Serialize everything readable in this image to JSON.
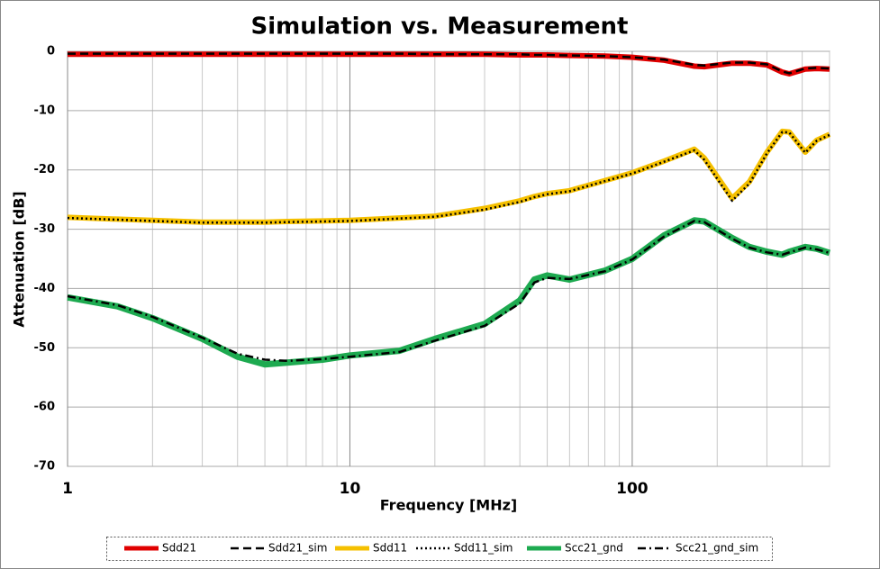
{
  "chart_data": {
    "type": "line",
    "title": "Simulation vs. Measurement",
    "x_label": "Frequency [MHz]",
    "y_label": "Attenuation  [dB]",
    "x_log_scale": true,
    "grid": true,
    "xlim": [
      1,
      500
    ],
    "xticks": [
      1,
      10,
      100
    ],
    "xminorticks": [
      2,
      3,
      4,
      5,
      6,
      7,
      8,
      9,
      20,
      30,
      40,
      50,
      60,
      70,
      80,
      90,
      200,
      300,
      400,
      500
    ],
    "ylim": [
      -70,
      0
    ],
    "yticks": [
      0,
      -10,
      -20,
      -30,
      -40,
      -50,
      -60,
      -70
    ],
    "legend": "bottom",
    "x": [
      1,
      1.5,
      2,
      3,
      4,
      5,
      6,
      8,
      10,
      15,
      20,
      30,
      40,
      45,
      50,
      60,
      80,
      100,
      130,
      166,
      180,
      226,
      260,
      300,
      340,
      360,
      410,
      450,
      500
    ],
    "series": [
      {
        "name": "Sdd21",
        "color": "#e00000",
        "line_style": "solid",
        "width": 6,
        "values": [
          -0.5,
          -0.5,
          -0.5,
          -0.5,
          -0.5,
          -0.5,
          -0.5,
          -0.5,
          -0.5,
          -0.5,
          -0.5,
          -0.5,
          -0.6,
          -0.6,
          -0.6,
          -0.7,
          -0.8,
          -1,
          -1.5,
          -2.5,
          -2.6,
          -2,
          -2,
          -2.3,
          -3.5,
          -3.8,
          -3,
          -2.9,
          -3
        ]
      },
      {
        "name": "Sdd21_sim",
        "color": "#000000",
        "line_style": "dashed",
        "width": 2.5,
        "values": [
          -0.4,
          -0.4,
          -0.4,
          -0.4,
          -0.4,
          -0.4,
          -0.4,
          -0.4,
          -0.4,
          -0.4,
          -0.5,
          -0.5,
          -0.5,
          -0.6,
          -0.6,
          -0.7,
          -0.8,
          -1,
          -1.4,
          -2.3,
          -2.4,
          -1.9,
          -1.9,
          -2.2,
          -3.4,
          -3.7,
          -2.9,
          -2.8,
          -2.9
        ]
      },
      {
        "name": "Sdd11",
        "color": "#f5c000",
        "line_style": "solid",
        "width": 6,
        "values": [
          -28,
          -28.3,
          -28.5,
          -28.8,
          -28.8,
          -28.8,
          -28.7,
          -28.6,
          -28.5,
          -28.1,
          -27.8,
          -26.5,
          -25.2,
          -24.5,
          -24,
          -23.5,
          -21.8,
          -20.5,
          -18.5,
          -16.5,
          -18,
          -24.8,
          -22,
          -17,
          -13.5,
          -13.6,
          -17,
          -15,
          -14
        ]
      },
      {
        "name": "Sdd11_sim",
        "color": "#000000",
        "line_style": "dotted",
        "width": 2.5,
        "values": [
          -28.1,
          -28.4,
          -28.6,
          -28.9,
          -28.9,
          -28.9,
          -28.8,
          -28.7,
          -28.6,
          -28.2,
          -27.9,
          -26.7,
          -25.4,
          -24.6,
          -24.1,
          -23.6,
          -21.9,
          -20.6,
          -18.6,
          -16.7,
          -18.3,
          -25.2,
          -22.3,
          -17.2,
          -13.6,
          -13.7,
          -17.1,
          -15.1,
          -14.1
        ]
      },
      {
        "name": "Scc21_gnd",
        "color": "#1daa50",
        "line_style": "solid",
        "width": 7,
        "values": [
          -41.5,
          -43,
          -45,
          -48.5,
          -51.5,
          -52.8,
          -52.5,
          -52,
          -51.3,
          -50.5,
          -48.5,
          -46,
          -42,
          -38.5,
          -37.8,
          -38.5,
          -37,
          -35,
          -31,
          -28.5,
          -28.7,
          -31.5,
          -33,
          -33.8,
          -34.3,
          -33.8,
          -33,
          -33.3,
          -34
        ]
      },
      {
        "name": "Scc21_gnd_sim",
        "color": "#000000",
        "line_style": "dashdot",
        "width": 2.5,
        "values": [
          -41.3,
          -42.8,
          -44.8,
          -48.3,
          -51,
          -52,
          -52.2,
          -51.9,
          -51.5,
          -50.7,
          -48.8,
          -46.3,
          -42.5,
          -39,
          -38.2,
          -38.4,
          -37.1,
          -35.1,
          -31.2,
          -28.6,
          -28.8,
          -31.6,
          -33.1,
          -33.9,
          -34.3,
          -33.9,
          -33.1,
          -33.4,
          -34
        ]
      }
    ]
  }
}
